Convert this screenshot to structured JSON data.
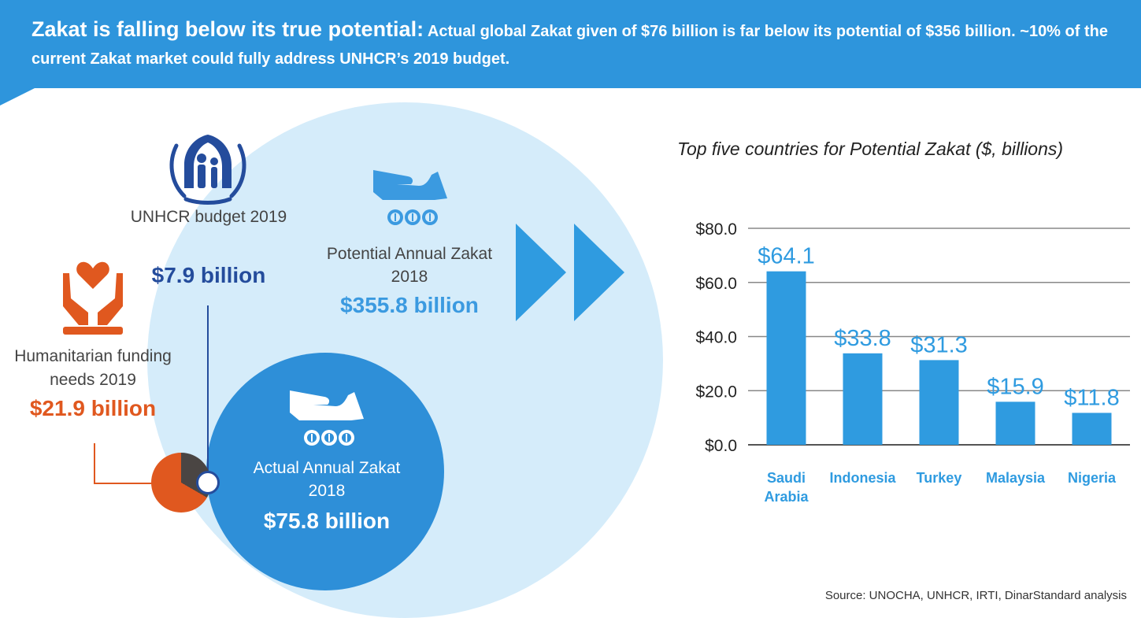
{
  "banner": {
    "headline": "Zakat is falling below its true potential:",
    "body": "Actual global Zakat given of $76 billion is far below its potential of $356 billion.  ~10% of the current Zakat market could fully address UNHCR’s 2019 budget."
  },
  "unhcr": {
    "label": "UNHCR budget 2019",
    "value": "$7.9 billion",
    "icon": "unhcr-emblem-icon",
    "color": "#244c9c"
  },
  "humanitarian": {
    "label": "Humanitarian funding needs 2019",
    "value": "$21.9 billion",
    "icon": "hands-heart-icon",
    "color": "#e0581f"
  },
  "potential": {
    "label": "Potential  Annual Zakat 2018",
    "value": "$355.8 billion",
    "icon": "hand-coins-icon",
    "color": "#3b9ae0"
  },
  "actual": {
    "label": "Actual  Annual Zakat 2018",
    "value": "$75.8 billion",
    "icon": "hand-coins-icon",
    "color": "#2e8fd8"
  },
  "chart_data": {
    "type": "bar",
    "title": "Top five countries for Potential Zakat ($, billions)",
    "categories": [
      "Saudi Arabia",
      "Indonesia",
      "Turkey",
      "Malaysia",
      "Nigeria"
    ],
    "category_lines": [
      [
        "Saudi",
        "Arabia"
      ],
      [
        "Indonesia"
      ],
      [
        "Turkey"
      ],
      [
        "Malaysia"
      ],
      [
        "Nigeria"
      ]
    ],
    "values": [
      64.1,
      33.8,
      31.3,
      15.9,
      11.8
    ],
    "value_labels": [
      "$64.1",
      "$33.8",
      "$31.3",
      "$15.9",
      "$11.8"
    ],
    "yticks": [
      "$80.0",
      "$60.0",
      "$40.0",
      "$20.0",
      "$0.0"
    ],
    "ylim": [
      0,
      80
    ],
    "grid": true,
    "bar_color": "#2f9be0"
  },
  "source": "Source: UNOCHA, UNHCR, IRTI, DinarStandard analysis"
}
